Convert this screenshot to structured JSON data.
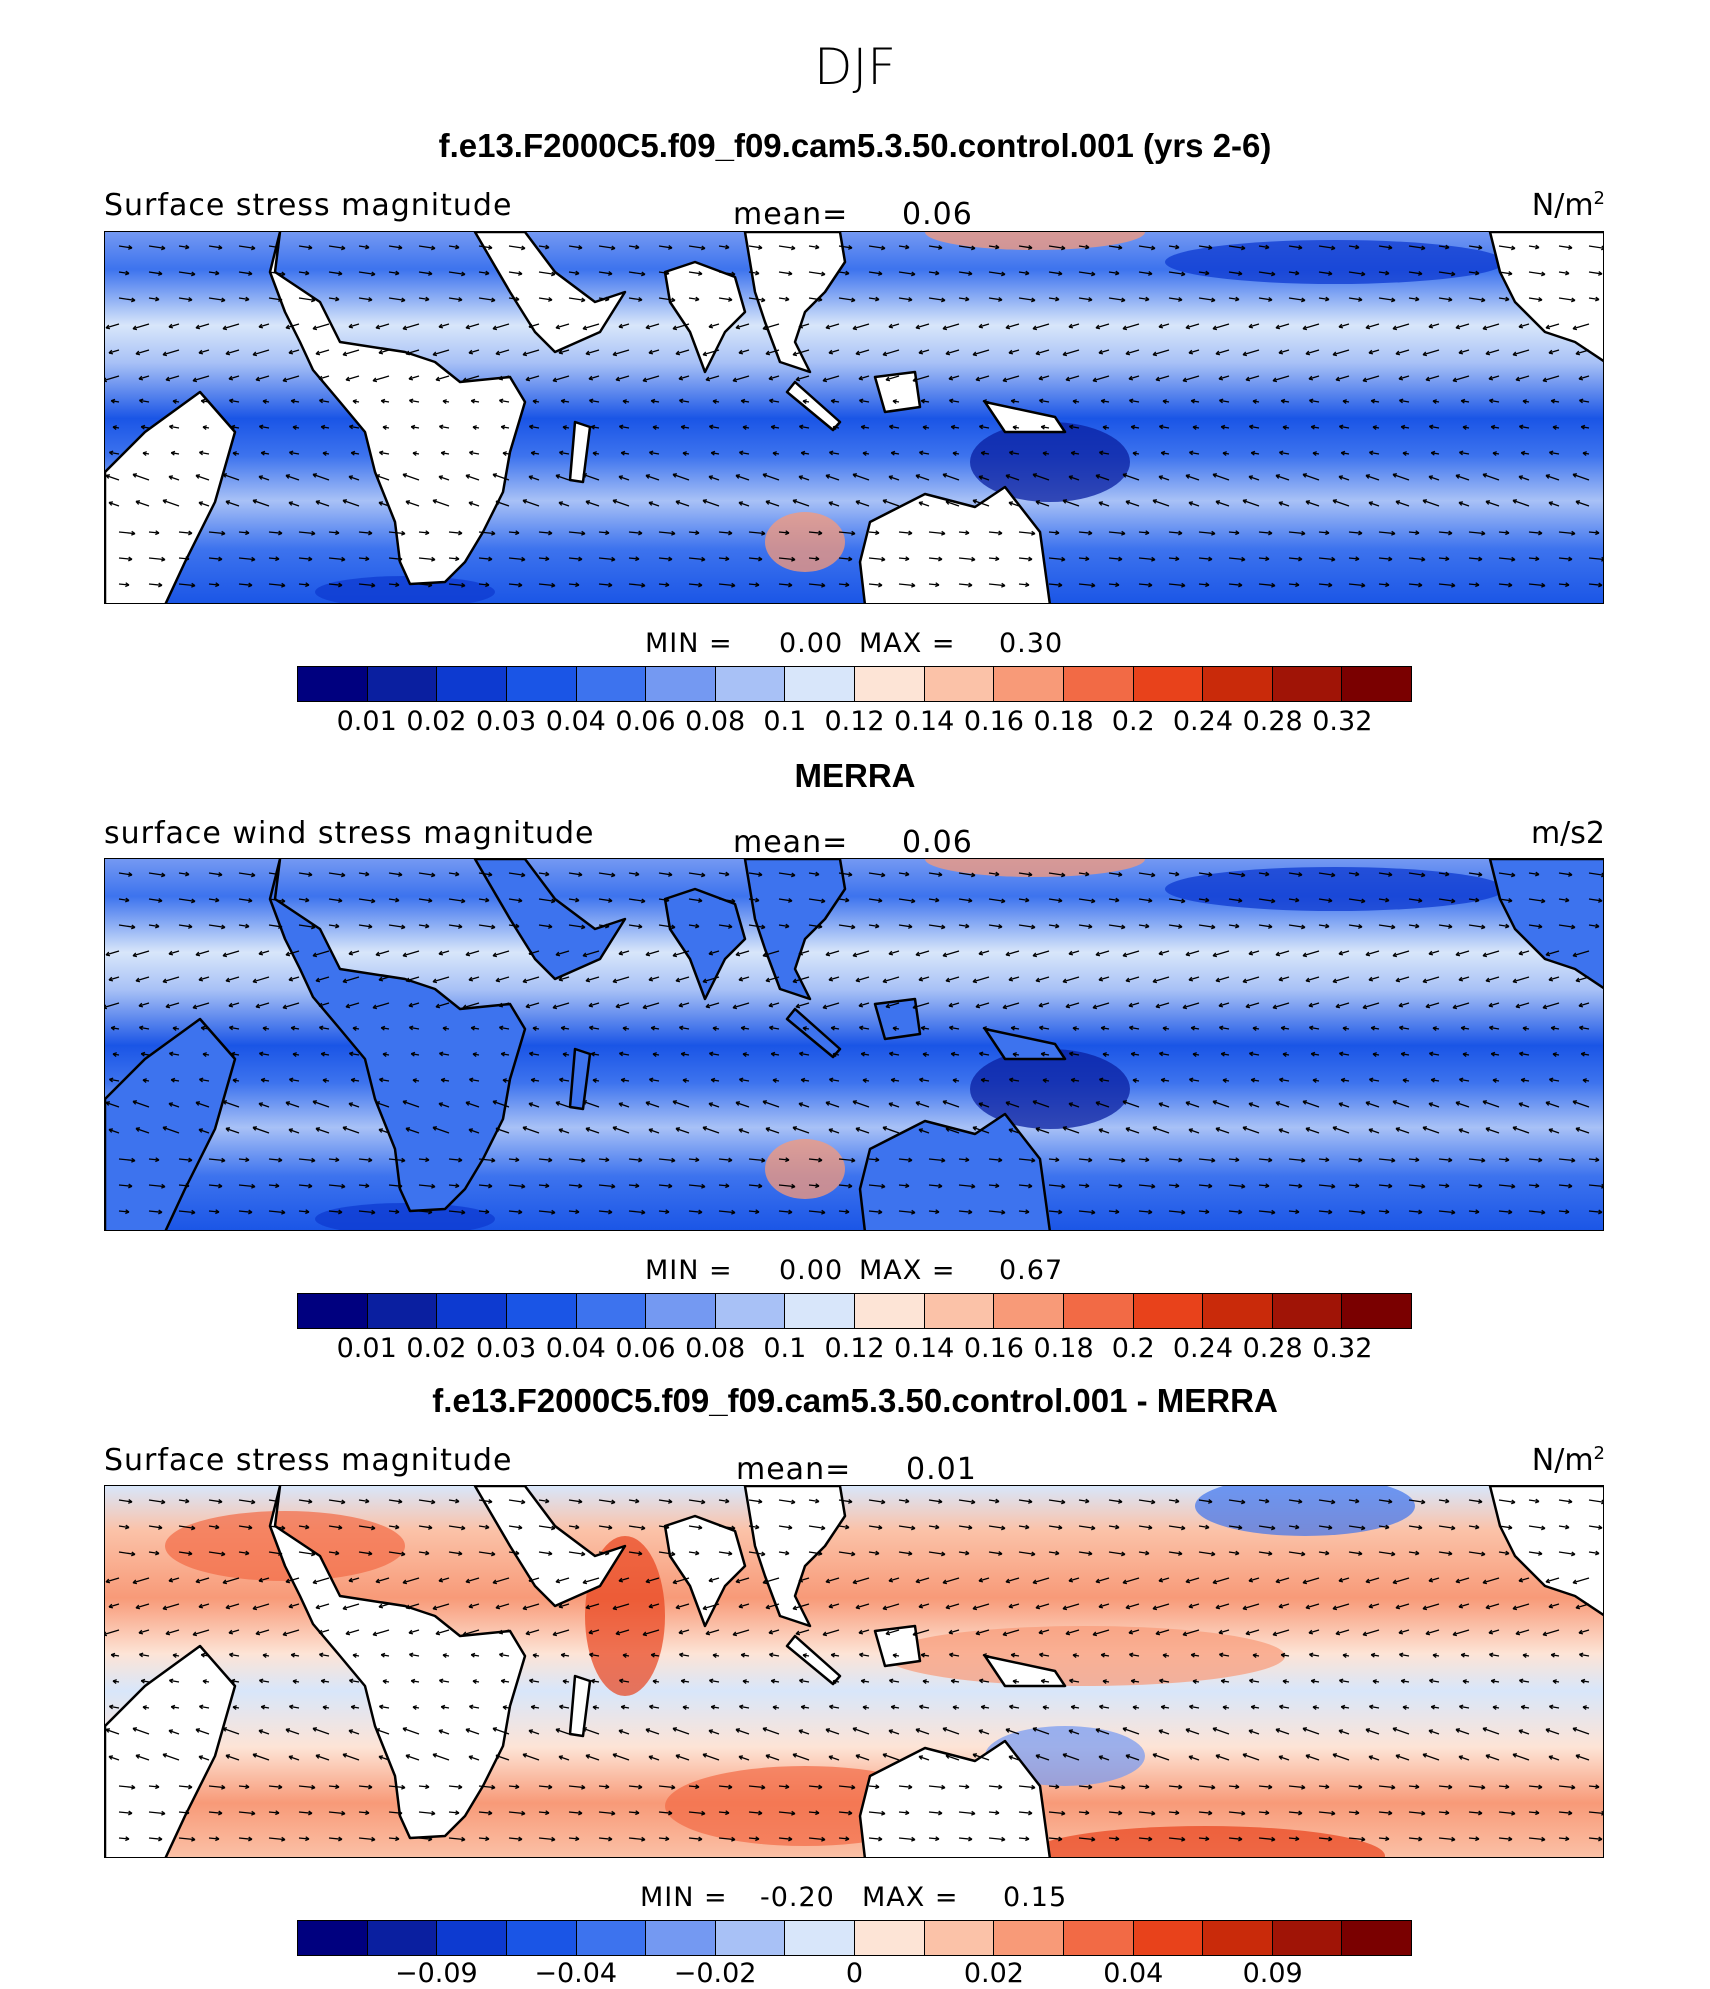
{
  "season": "DJF",
  "panels": [
    {
      "title": "f.e13.F2000C5.f09_f09.cam5.3.50.control.001 (yrs 2-6)",
      "left_label": "Surface stress magnitude",
      "mean_label": "mean=",
      "mean_value": "0.06",
      "units": "N/m",
      "units_sup": "2",
      "min_label": "MIN =",
      "min_value": "0.00",
      "max_label": "MAX =",
      "max_value": "0.30",
      "colorbar_labels": [
        "0.01",
        "0.02",
        "0.03",
        "0.04",
        "0.06",
        "0.08",
        "0.1",
        "0.12",
        "0.14",
        "0.16",
        "0.18",
        "0.2",
        "0.24",
        "0.28",
        "0.32"
      ],
      "field": "model"
    },
    {
      "title": "MERRA",
      "left_label": "surface wind stress magnitude",
      "mean_label": "mean=",
      "mean_value": "0.06",
      "units": "m/s2",
      "units_sup": "",
      "min_label": "MIN =",
      "min_value": "0.00",
      "max_label": "MAX =",
      "max_value": "0.67",
      "colorbar_labels": [
        "0.01",
        "0.02",
        "0.03",
        "0.04",
        "0.06",
        "0.08",
        "0.1",
        "0.12",
        "0.14",
        "0.16",
        "0.18",
        "0.2",
        "0.24",
        "0.28",
        "0.32"
      ],
      "field": "obs"
    },
    {
      "title": "f.e13.F2000C5.f09_f09.cam5.3.50.control.001 - MERRA",
      "left_label": "Surface stress magnitude",
      "mean_label": "mean=",
      "mean_value": "0.01",
      "units": "N/m",
      "units_sup": "2",
      "min_label": "MIN =",
      "min_value": "-0.20",
      "max_label": "MAX =",
      "max_value": "0.15",
      "colorbar_labels": [
        "−0.09",
        "−0.04",
        "−0.02",
        "0",
        "0.02",
        "0.04",
        "0.09"
      ],
      "field": "diff"
    }
  ],
  "colorbar_colors": [
    "#00007f",
    "#0a1fa0",
    "#0d3ad0",
    "#1a55e6",
    "#3d73ee",
    "#7499f2",
    "#a8c1f6",
    "#d8e6fa",
    "#fde4d6",
    "#fbc2a8",
    "#f89a78",
    "#f26a45",
    "#e8421b",
    "#c92a0a",
    "#a01406",
    "#7a0000"
  ]
}
